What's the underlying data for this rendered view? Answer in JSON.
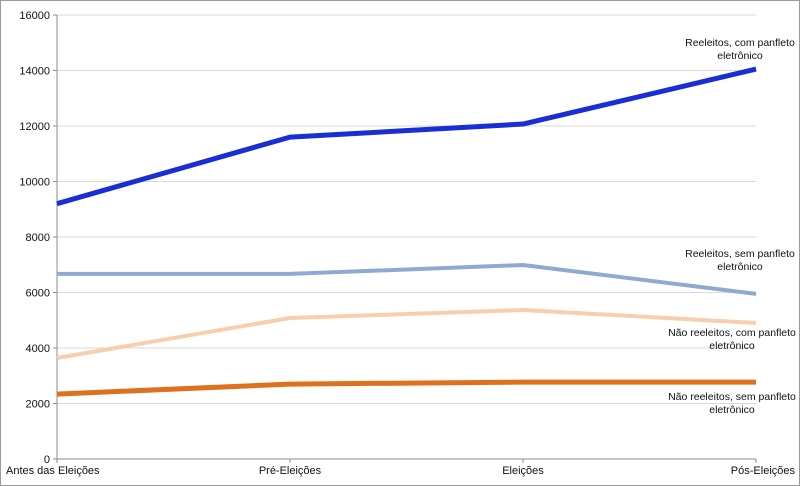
{
  "chart_data": {
    "type": "line",
    "title": "",
    "xlabel": "",
    "ylabel": "",
    "categories": [
      "Antes das Eleições",
      "Pré-Eleições",
      "Eleições",
      "Pós-Eleições"
    ],
    "ylim": [
      0,
      16000
    ],
    "yticks": [
      0,
      2000,
      4000,
      6000,
      8000,
      10000,
      12000,
      14000,
      16000
    ],
    "grid": true,
    "legend_position": "inline-right",
    "series": [
      {
        "name": "Reeleitos, com panfleto eletrônico",
        "label_lines": [
          "Reeleitos, com panfleto",
          "eletrônico"
        ],
        "color": "#1a2ed8",
        "width": 5,
        "values": [
          9200,
          11600,
          12070,
          14050
        ]
      },
      {
        "name": "Reeleitos, sem panfleto eletrônico",
        "label_lines": [
          "Reeleitos, sem panfleto",
          "eletrônico"
        ],
        "color": "#8fa9d2",
        "width": 4,
        "values": [
          6670,
          6670,
          6990,
          5950
        ]
      },
      {
        "name": "Não reeleitos, com panfleto eletrônico",
        "label_lines": [
          "Não reeleitos, com panfleto",
          "eletrônico"
        ],
        "color": "#f8cfae",
        "width": 4,
        "values": [
          3640,
          5080,
          5370,
          4900
        ]
      },
      {
        "name": "Não reeleitos, sem panfleto eletrônico",
        "label_lines": [
          "Não reeleitos, sem panfleto",
          "eletrônico"
        ],
        "color": "#e0701c",
        "width": 5,
        "values": [
          2340,
          2700,
          2770,
          2770
        ]
      }
    ]
  }
}
